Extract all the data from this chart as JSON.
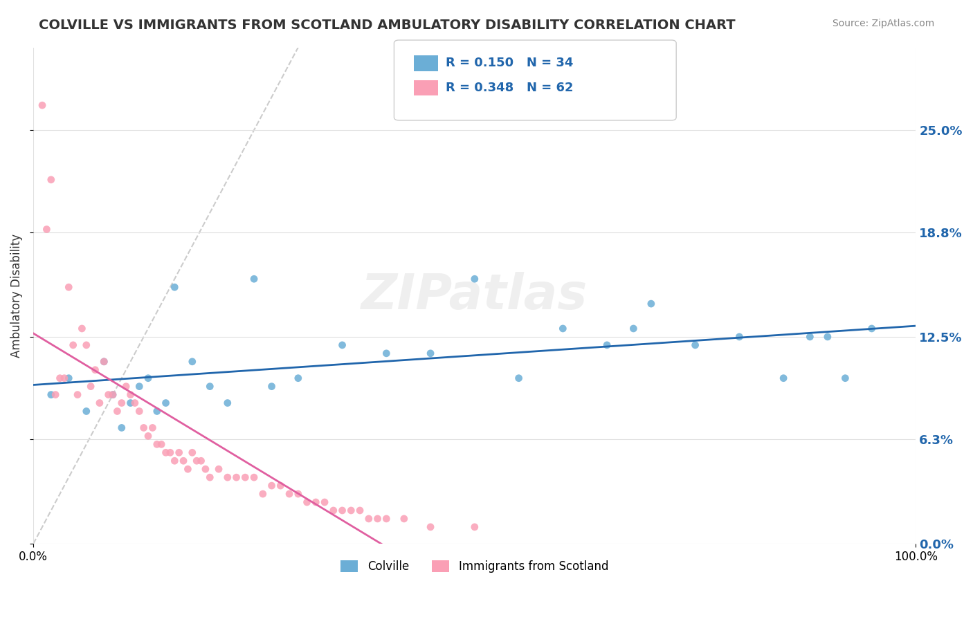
{
  "title": "COLVILLE VS IMMIGRANTS FROM SCOTLAND AMBULATORY DISABILITY CORRELATION CHART",
  "source": "Source: ZipAtlas.com",
  "xlabel": "",
  "ylabel": "Ambulatory Disability",
  "watermark": "ZIPatlas",
  "legend_colville": "Colville",
  "legend_immigrants": "Immigrants from Scotland",
  "R_colville": 0.15,
  "N_colville": 34,
  "R_immigrants": 0.348,
  "N_immigrants": 62,
  "colville_color": "#6baed6",
  "immigrants_color": "#fa9fb5",
  "colville_line_color": "#2166ac",
  "immigrants_line_color": "#e05fa0",
  "diagonal_color": "#cccccc",
  "xmin": 0.0,
  "xmax": 1.0,
  "ymin": 0.0,
  "ymax": 0.3,
  "yticks": [
    0.0,
    0.063,
    0.125,
    0.188,
    0.25
  ],
  "ytick_labels": [
    "0.0%",
    "6.3%",
    "12.5%",
    "18.8%",
    "25.0%"
  ],
  "xtick_labels": [
    "0.0%",
    "100.0%"
  ],
  "colville_x": [
    0.02,
    0.04,
    0.06,
    0.08,
    0.09,
    0.1,
    0.11,
    0.12,
    0.13,
    0.14,
    0.15,
    0.16,
    0.18,
    0.2,
    0.22,
    0.25,
    0.27,
    0.3,
    0.35,
    0.4,
    0.45,
    0.5,
    0.55,
    0.6,
    0.65,
    0.68,
    0.7,
    0.75,
    0.8,
    0.85,
    0.88,
    0.9,
    0.92,
    0.95
  ],
  "colville_y": [
    0.09,
    0.1,
    0.08,
    0.11,
    0.09,
    0.07,
    0.085,
    0.095,
    0.1,
    0.08,
    0.085,
    0.155,
    0.11,
    0.095,
    0.085,
    0.16,
    0.095,
    0.1,
    0.12,
    0.115,
    0.115,
    0.16,
    0.1,
    0.13,
    0.12,
    0.13,
    0.145,
    0.12,
    0.125,
    0.1,
    0.125,
    0.125,
    0.1,
    0.13
  ],
  "immigrants_x": [
    0.01,
    0.015,
    0.02,
    0.025,
    0.03,
    0.035,
    0.04,
    0.045,
    0.05,
    0.055,
    0.06,
    0.065,
    0.07,
    0.075,
    0.08,
    0.085,
    0.09,
    0.095,
    0.1,
    0.105,
    0.11,
    0.115,
    0.12,
    0.125,
    0.13,
    0.135,
    0.14,
    0.145,
    0.15,
    0.155,
    0.16,
    0.165,
    0.17,
    0.175,
    0.18,
    0.185,
    0.19,
    0.195,
    0.2,
    0.21,
    0.22,
    0.23,
    0.24,
    0.25,
    0.26,
    0.27,
    0.28,
    0.29,
    0.3,
    0.31,
    0.32,
    0.33,
    0.34,
    0.35,
    0.36,
    0.37,
    0.38,
    0.39,
    0.4,
    0.42,
    0.45,
    0.5
  ],
  "immigrants_y": [
    0.265,
    0.19,
    0.22,
    0.09,
    0.1,
    0.1,
    0.155,
    0.12,
    0.09,
    0.13,
    0.12,
    0.095,
    0.105,
    0.085,
    0.11,
    0.09,
    0.09,
    0.08,
    0.085,
    0.095,
    0.09,
    0.085,
    0.08,
    0.07,
    0.065,
    0.07,
    0.06,
    0.06,
    0.055,
    0.055,
    0.05,
    0.055,
    0.05,
    0.045,
    0.055,
    0.05,
    0.05,
    0.045,
    0.04,
    0.045,
    0.04,
    0.04,
    0.04,
    0.04,
    0.03,
    0.035,
    0.035,
    0.03,
    0.03,
    0.025,
    0.025,
    0.025,
    0.02,
    0.02,
    0.02,
    0.02,
    0.015,
    0.015,
    0.015,
    0.015,
    0.01,
    0.01
  ]
}
